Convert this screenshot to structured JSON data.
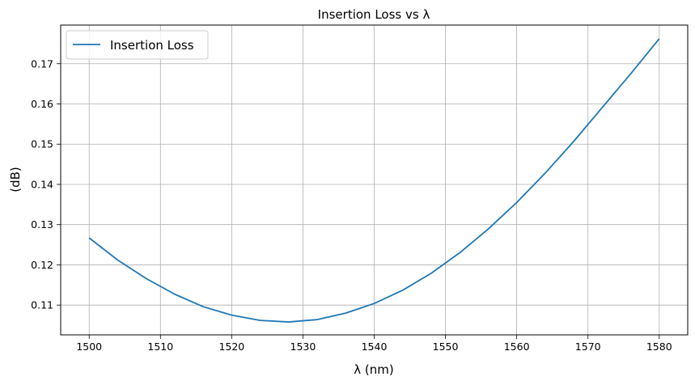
{
  "chart_data": {
    "type": "line",
    "title": "Insertion Loss vs λ",
    "xlabel": "λ (nm)",
    "ylabel": "(dB)",
    "xlim": [
      1496,
      1584
    ],
    "ylim": [
      0.1026,
      0.1796
    ],
    "xticks": [
      1500,
      1510,
      1520,
      1530,
      1540,
      1550,
      1560,
      1570,
      1580
    ],
    "xtick_labels": [
      "1500",
      "1510",
      "1520",
      "1530",
      "1540",
      "1550",
      "1560",
      "1570",
      "1580"
    ],
    "yticks": [
      0.11,
      0.12,
      0.13,
      0.14,
      0.15,
      0.16,
      0.17
    ],
    "ytick_labels": [
      "0.11",
      "0.12",
      "0.13",
      "0.14",
      "0.15",
      "0.16",
      "0.17"
    ],
    "grid": true,
    "legend_position": "top-left",
    "series": [
      {
        "name": "Insertion Loss",
        "color": "#1f77b4",
        "x": [
          1500,
          1504,
          1508,
          1512,
          1516,
          1520,
          1524,
          1528,
          1532,
          1536,
          1540,
          1544,
          1548,
          1552,
          1556,
          1560,
          1564,
          1568,
          1572,
          1576,
          1580
        ],
        "y": [
          0.1267,
          0.1212,
          0.1166,
          0.1127,
          0.1096,
          0.1075,
          0.1062,
          0.1058,
          0.1064,
          0.108,
          0.1104,
          0.1137,
          0.1179,
          0.123,
          0.1289,
          0.1355,
          0.1428,
          0.1507,
          0.1591,
          0.1675,
          0.1762
        ]
      }
    ]
  }
}
